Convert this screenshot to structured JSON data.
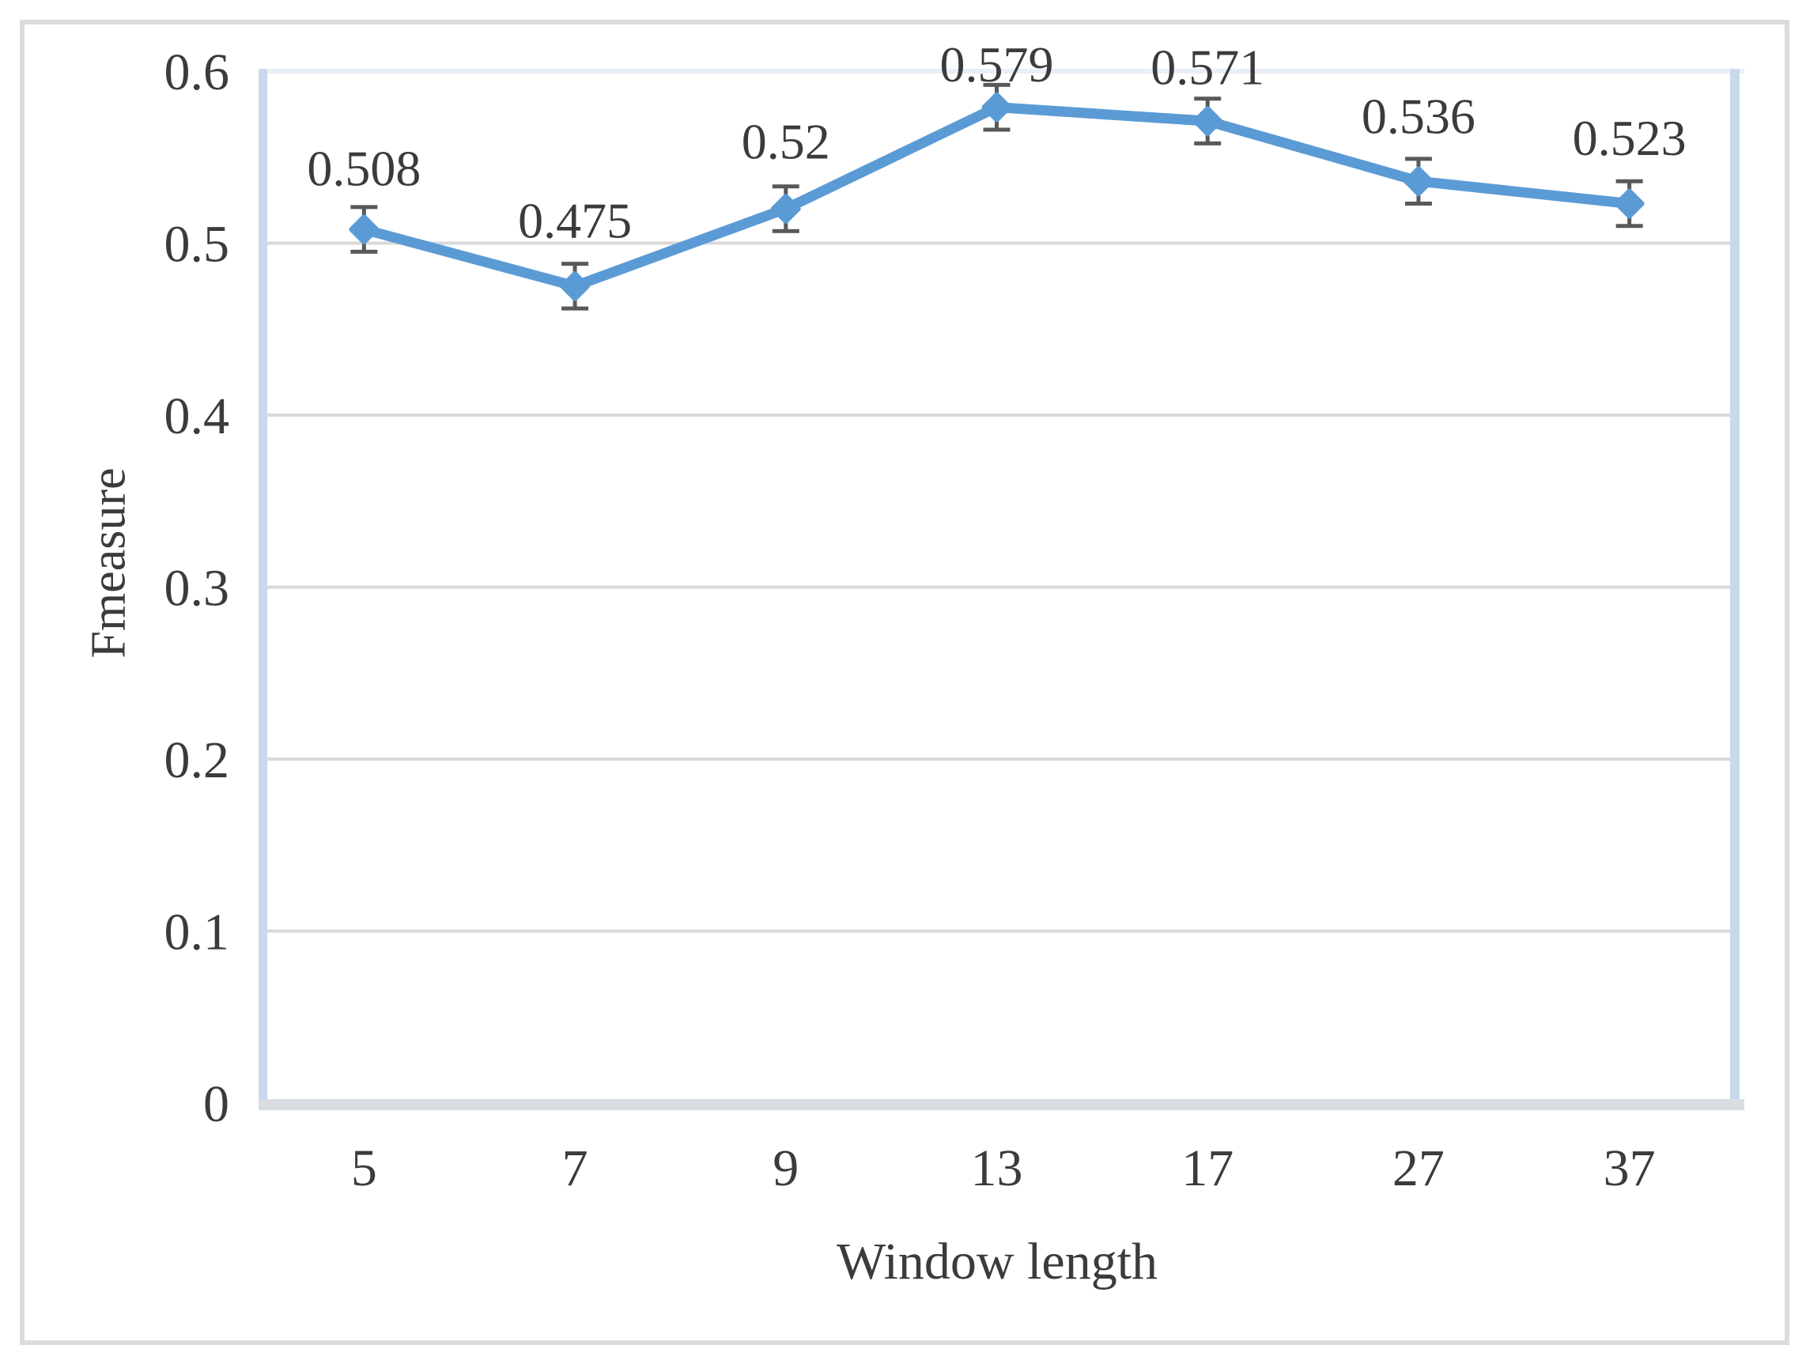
{
  "figure": {
    "kind": "line chart figure with error bars",
    "background": "#ffffff",
    "outer_border_color": "#dcdcdc"
  },
  "chart_data": {
    "type": "line",
    "title": "",
    "xlabel": "Window length",
    "ylabel": "Fmeasure",
    "categories": [
      "5",
      "7",
      "9",
      "13",
      "17",
      "27",
      "37"
    ],
    "series": [
      {
        "name": "Fmeasure",
        "values": [
          0.508,
          0.475,
          0.52,
          0.579,
          0.571,
          0.536,
          0.523
        ],
        "data_labels": [
          "0.508",
          "0.475",
          "0.52",
          "0.579",
          "0.571",
          "0.536",
          "0.523"
        ],
        "error_bar_value": 0.013
      }
    ],
    "y_tick_labels": [
      "0",
      "0.1",
      "0.2",
      "0.3",
      "0.4",
      "0.5",
      "0.6"
    ],
    "ylim": [
      0,
      0.6
    ],
    "grid": "horizontal",
    "legend": "none",
    "colors": {
      "line": "#5B9BD5",
      "marker": "#5B9BD5",
      "error_bar": "#595959",
      "gridline": "#D9D9D9",
      "plot_border_side": "#C8D9EC",
      "plot_border_top": "#E9EFF6",
      "axis_band_bottom": "#D9DDE2",
      "outer_border": "#DCDCDC",
      "text": "#3B3B3B"
    }
  }
}
